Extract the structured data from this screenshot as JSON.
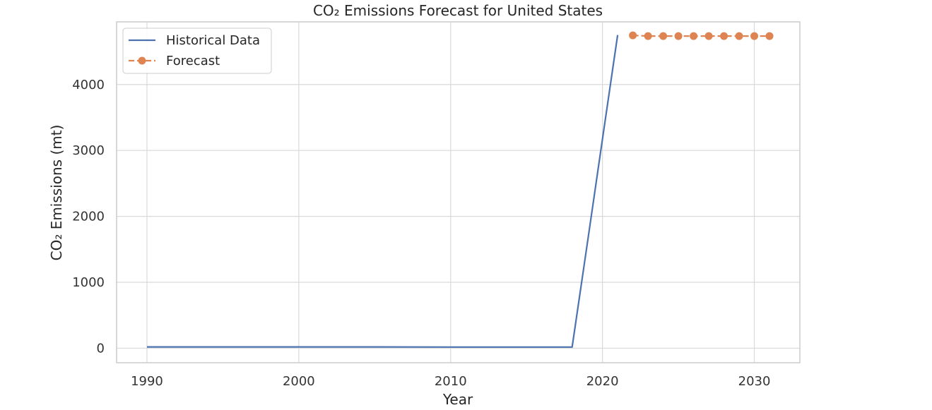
{
  "chart_data": {
    "type": "line",
    "title": "CO₂ Emissions Forecast for United States",
    "xlabel": "Year",
    "ylabel": "CO₂ Emissions (mt)",
    "xlim": [
      1988,
      2033
    ],
    "ylim": [
      -220,
      4950
    ],
    "grid": true,
    "legend_placement": "top-left",
    "x_ticks": [
      1990,
      2000,
      2010,
      2020,
      2030
    ],
    "y_ticks": [
      0,
      1000,
      2000,
      3000,
      4000
    ],
    "series": [
      {
        "name": "Historical Data",
        "style": "solid",
        "color": "#4c72b0",
        "x": [
          1990,
          1995,
          2000,
          2005,
          2010,
          2015,
          2018,
          2019,
          2020,
          2021
        ],
        "y": [
          20,
          20,
          20,
          20,
          18,
          18,
          18,
          1590,
          3170,
          4750
        ]
      },
      {
        "name": "Forecast",
        "style": "dashed-markers",
        "color": "#dd8452",
        "x": [
          2022,
          2023,
          2024,
          2025,
          2026,
          2027,
          2028,
          2029,
          2030,
          2031
        ],
        "y": [
          4745,
          4735,
          4735,
          4735,
          4735,
          4735,
          4735,
          4735,
          4735,
          4735
        ]
      }
    ]
  }
}
